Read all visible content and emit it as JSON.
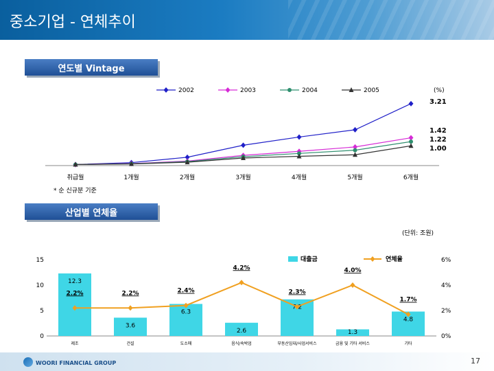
{
  "page": {
    "title": "중소기업 - 연체추이",
    "page_number": "17",
    "logo_text": "WOORI FINANCIAL GROUP"
  },
  "sections": {
    "vintage_label": "연도별 Vintage",
    "industry_label": "산업별 연체율"
  },
  "notes": {
    "vintage_note": "* 순 신규분 기준",
    "unit_note": "(단위: 조원)"
  },
  "chart_data": [
    {
      "type": "line",
      "unit_label": "(%)",
      "categories": [
        "취급월",
        "1개월",
        "2개월",
        "3개월",
        "4개월",
        "5개월",
        "6개월"
      ],
      "series": [
        {
          "name": "2002",
          "color": "#1f1fc8",
          "marker": "diamond",
          "values": [
            0.02,
            0.12,
            0.4,
            1.03,
            1.46,
            1.84,
            3.21
          ],
          "end_label": "3.21"
        },
        {
          "name": "2003",
          "color": "#d62ad6",
          "marker": "diamond",
          "values": [
            0.02,
            0.07,
            0.2,
            0.5,
            0.71,
            0.94,
            1.42
          ],
          "end_label": "1.42"
        },
        {
          "name": "2004",
          "color": "#2f8f6f",
          "marker": "circle",
          "values": [
            0.02,
            0.06,
            0.17,
            0.43,
            0.6,
            0.77,
            1.22
          ],
          "end_label": "1.22"
        },
        {
          "name": "2005",
          "color": "#333333",
          "marker": "triangle",
          "values": [
            0.02,
            0.05,
            0.14,
            0.36,
            0.45,
            0.53,
            1.0
          ],
          "end_label": "1.00"
        }
      ],
      "ylim": [
        0,
        3.6
      ]
    },
    {
      "type": "bar+line",
      "categories": [
        "제조",
        "건설",
        "도소매",
        "음식/숙박업",
        "부동산임대/사업서비스",
        "금융 및 기타 서비스",
        "기타"
      ],
      "bar_series": {
        "name": "대출금",
        "values": [
          12.3,
          3.6,
          6.3,
          2.6,
          7.2,
          1.3,
          4.8
        ]
      },
      "line_series": {
        "name": "연체율",
        "values": [
          2.2,
          2.2,
          2.4,
          4.2,
          2.3,
          4.0,
          1.7
        ],
        "labels": [
          "2.2%",
          "2.2%",
          "2.4%",
          "4.2%",
          "2.3%",
          "4.0%",
          "1.7%"
        ]
      },
      "left_axis": {
        "ticks": [
          "0",
          "5",
          "10",
          "15"
        ],
        "ylim": [
          0,
          15
        ]
      },
      "right_axis": {
        "ticks": [
          "0%",
          "2%",
          "4%",
          "6%"
        ],
        "ylim": [
          0,
          6
        ]
      },
      "colors": {
        "bar": "#3fd6e6",
        "line": "#f0a020"
      }
    }
  ]
}
